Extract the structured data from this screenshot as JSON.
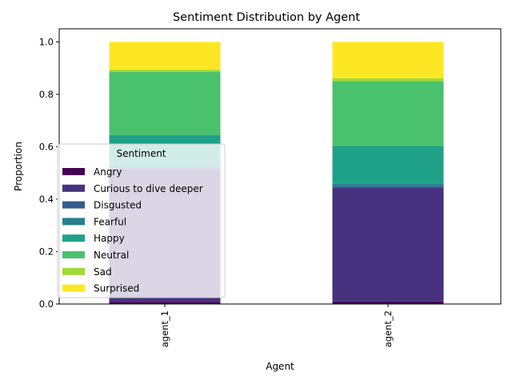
{
  "chart_data": {
    "type": "bar",
    "stacked": true,
    "title": "Sentiment Distribution by Agent",
    "xlabel": "Agent",
    "ylabel": "Proportion",
    "categories": [
      "agent_1",
      "agent_2"
    ],
    "ylim": [
      0,
      1.05
    ],
    "yticks": [
      "0.0",
      "0.2",
      "0.4",
      "0.6",
      "0.8",
      "1.0"
    ],
    "legend": {
      "title": "Sentiment",
      "placement": "center-left"
    },
    "series": [
      {
        "name": "Angry",
        "color": "#440154",
        "values": [
          0.008,
          0.01
        ]
      },
      {
        "name": "Curious to dive deeper",
        "color": "#46327e",
        "values": [
          0.507,
          0.435
        ]
      },
      {
        "name": "Disgusted",
        "color": "#365c8d",
        "values": [
          0.006,
          0.004
        ]
      },
      {
        "name": "Fearful",
        "color": "#277f8e",
        "values": [
          0.004,
          0.011
        ]
      },
      {
        "name": "Happy",
        "color": "#1fa187",
        "values": [
          0.12,
          0.143
        ]
      },
      {
        "name": "Neutral",
        "color": "#4ac16d",
        "values": [
          0.24,
          0.247
        ]
      },
      {
        "name": "Sad",
        "color": "#a0da39",
        "values": [
          0.009,
          0.011
        ]
      },
      {
        "name": "Surprised",
        "color": "#fde725",
        "values": [
          0.106,
          0.139
        ]
      }
    ]
  }
}
